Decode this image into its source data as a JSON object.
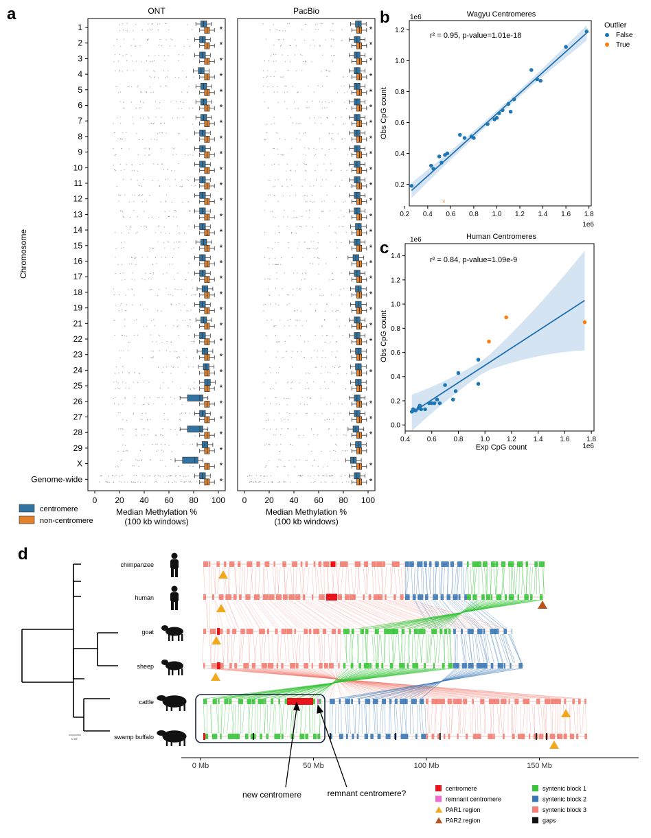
{
  "panel_a": {
    "label": "a",
    "y_axis_label": "Chromosome",
    "chromosomes": [
      "1",
      "2",
      "3",
      "4",
      "5",
      "6",
      "7",
      "8",
      "9",
      "10",
      "11",
      "12",
      "13",
      "14",
      "15",
      "16",
      "17",
      "18",
      "19",
      "21",
      "22",
      "23",
      "24",
      "25",
      "26",
      "27",
      "28",
      "29",
      "X",
      "Genome-wide"
    ],
    "star": "*",
    "ont": {
      "title": "ONT",
      "xlabel_line1": "Median Methylation %",
      "xlabel_line2": "(100 kb windows)",
      "ticks": [
        "0",
        "20",
        "40",
        "60",
        "80",
        "100"
      ],
      "stars": [
        1,
        1,
        1,
        1,
        1,
        1,
        1,
        1,
        1,
        1,
        1,
        1,
        1,
        1,
        1,
        1,
        1,
        1,
        1,
        1,
        1,
        1,
        1,
        1,
        1,
        1,
        1,
        1,
        1,
        1
      ]
    },
    "pacbio": {
      "title": "PacBio",
      "xlabel_line1": "Median Methylation %",
      "xlabel_line2": "(100 kb windows)",
      "ticks": [
        "0",
        "20",
        "40",
        "60",
        "80",
        "100"
      ],
      "stars": [
        1,
        1,
        1,
        1,
        1,
        1,
        1,
        1,
        1,
        1,
        1,
        1,
        1,
        1,
        1,
        1,
        1,
        1,
        1,
        1,
        1,
        0,
        1,
        0,
        1,
        1,
        1,
        0,
        1,
        1
      ]
    },
    "legend": [
      {
        "label": "centromere",
        "color": "#3274a1"
      },
      {
        "label": "non-centromere",
        "color": "#e1812c"
      }
    ]
  },
  "panel_b": {
    "label": "b",
    "title": "Wagyu Centromeres",
    "ylabel": "Obs CpG count",
    "annotation": "r² = 0.95, p-value=1.01e-18",
    "x_ticks": [
      "0.2",
      "0.4",
      "0.6",
      "0.8",
      "1.0",
      "1.2",
      "1.4",
      "1.6",
      "1.8"
    ],
    "y_ticks": [
      "0.2",
      "0.4",
      "0.6",
      "0.8",
      "1.0",
      "1.2"
    ],
    "x_scale": "1e6",
    "y_scale": "1e6",
    "legend_title": "Outlier",
    "legend": [
      {
        "label": "False",
        "color": "#1f77b4"
      },
      {
        "label": "True",
        "color": "#ff7f0e"
      }
    ]
  },
  "panel_c": {
    "label": "c",
    "title": "Human Centromeres",
    "ylabel": "Obs CpG count",
    "xlabel": "Exp CpG count",
    "annotation": "r² = 0.84, p-value=1.09e-9",
    "x_ticks": [
      "0.4",
      "0.6",
      "0.8",
      "1.0",
      "1.2",
      "1.4",
      "1.6",
      "1.8"
    ],
    "y_ticks": [
      "0.0",
      "0.2",
      "0.4",
      "0.6",
      "0.8",
      "1.0",
      "1.2",
      "1.4"
    ],
    "x_scale": "1e6",
    "y_scale": "1e6"
  },
  "panel_d": {
    "label": "d",
    "species": [
      "chimpanzee",
      "human",
      "goat",
      "sheep",
      "cattle",
      "swamp buffalo"
    ],
    "scale_label": "0.02",
    "axis_ticks": [
      "0 Mb",
      "50 Mb",
      "100 Mb",
      "150 Mb"
    ],
    "annotations": {
      "new": "new centromere",
      "remnant": "remnant centromere?"
    },
    "legend": [
      {
        "label": "centromere",
        "color": "#e8141c",
        "shape": "square"
      },
      {
        "label": "remnant centromere",
        "color": "#f06ad0",
        "shape": "square"
      },
      {
        "label": "PAR1 region",
        "color": "#f2a81d",
        "shape": "triangle"
      },
      {
        "label": "PAR2 region",
        "color": "#b5541e",
        "shape": "triangle"
      },
      {
        "label": "syntenic block 1",
        "color": "#38c43a",
        "shape": "square"
      },
      {
        "label": "syntenic block 2",
        "color": "#3a78b5",
        "shape": "square"
      },
      {
        "label": "syntenic block 3",
        "color": "#f27d72",
        "shape": "square"
      },
      {
        "label": "gaps",
        "color": "#111111",
        "shape": "square"
      }
    ]
  },
  "chart_data": [
    {
      "type": "box",
      "panel": "a-ONT",
      "x_range": [
        0,
        100
      ],
      "series": [
        {
          "name": "centromere",
          "medians": [
            88,
            87,
            87,
            86,
            88,
            88,
            88,
            87,
            87,
            87,
            87,
            87,
            87,
            87,
            88,
            87,
            87,
            89,
            87,
            88,
            87,
            89,
            90,
            91,
            85,
            87,
            85,
            89,
            81,
            87
          ]
        },
        {
          "name": "non-centromere",
          "medians": [
            91,
            91,
            91,
            91,
            91,
            91,
            91,
            91,
            91,
            91,
            91,
            91,
            91,
            91,
            91,
            91,
            91,
            91,
            91,
            91,
            91,
            91,
            91,
            91,
            91,
            91,
            91,
            91,
            91,
            91
          ]
        }
      ]
    },
    {
      "type": "box",
      "panel": "a-PacBio",
      "x_range": [
        0,
        100
      ],
      "series": [
        {
          "name": "centromere",
          "medians": [
            92,
            91,
            91,
            91,
            91,
            91,
            91,
            91,
            91,
            91,
            91,
            91,
            91,
            92,
            91,
            90,
            91,
            92,
            92,
            91,
            91,
            92,
            92,
            92,
            91,
            91,
            90,
            92,
            88,
            91
          ]
        },
        {
          "name": "non-centromere",
          "medians": [
            93,
            93,
            93,
            93,
            93,
            93,
            93,
            93,
            93,
            93,
            93,
            93,
            93,
            93,
            93,
            93,
            93,
            93,
            93,
            93,
            93,
            93,
            93,
            93,
            93,
            93,
            93,
            93,
            93,
            93
          ]
        }
      ]
    },
    {
      "type": "scatter",
      "panel": "b",
      "title": "Wagyu Centromeres",
      "ylabel": "Obs CpG count",
      "x_unit": "1e6",
      "y_unit": "1e6",
      "xlim": [
        0.24,
        1.82
      ],
      "ylim": [
        0.06,
        1.26
      ],
      "fit": {
        "x0": 0.26,
        "y0": 0.16,
        "x1": 1.78,
        "y1": 1.18
      },
      "points": [
        {
          "x": 0.26,
          "y": 0.19,
          "outlier": false
        },
        {
          "x": 0.43,
          "y": 0.32,
          "outlier": false
        },
        {
          "x": 0.45,
          "y": 0.3,
          "outlier": false
        },
        {
          "x": 0.5,
          "y": 0.38,
          "outlier": false
        },
        {
          "x": 0.52,
          "y": 0.34,
          "outlier": false
        },
        {
          "x": 0.55,
          "y": 0.39,
          "outlier": false
        },
        {
          "x": 0.57,
          "y": 0.4,
          "outlier": false
        },
        {
          "x": 0.68,
          "y": 0.52,
          "outlier": false
        },
        {
          "x": 0.72,
          "y": 0.5,
          "outlier": false
        },
        {
          "x": 0.78,
          "y": 0.51,
          "outlier": false
        },
        {
          "x": 0.8,
          "y": 0.5,
          "outlier": false
        },
        {
          "x": 0.92,
          "y": 0.59,
          "outlier": false
        },
        {
          "x": 0.98,
          "y": 0.62,
          "outlier": false
        },
        {
          "x": 1.0,
          "y": 0.63,
          "outlier": false
        },
        {
          "x": 1.02,
          "y": 0.66,
          "outlier": false
        },
        {
          "x": 1.05,
          "y": 0.68,
          "outlier": false
        },
        {
          "x": 1.1,
          "y": 0.72,
          "outlier": false
        },
        {
          "x": 1.12,
          "y": 0.67,
          "outlier": false
        },
        {
          "x": 1.15,
          "y": 0.75,
          "outlier": false
        },
        {
          "x": 1.3,
          "y": 0.94,
          "outlier": false
        },
        {
          "x": 1.35,
          "y": 0.88,
          "outlier": false
        },
        {
          "x": 1.38,
          "y": 0.87,
          "outlier": false
        },
        {
          "x": 1.6,
          "y": 1.09,
          "outlier": false
        },
        {
          "x": 1.78,
          "y": 1.19,
          "outlier": false
        },
        {
          "x": 0.54,
          "y": 0.09,
          "outlier": true
        }
      ]
    },
    {
      "type": "scatter",
      "panel": "c",
      "title": "Human Centromeres",
      "xlabel": "Exp CpG count",
      "ylabel": "Obs CpG count",
      "x_unit": "1e6",
      "y_unit": "1e6",
      "xlim": [
        0.4,
        1.82
      ],
      "ylim": [
        -0.05,
        1.5
      ],
      "fit": {
        "x0": 0.45,
        "y0": 0.1,
        "x1": 1.75,
        "y1": 1.03
      },
      "points": [
        {
          "x": 0.45,
          "y": 0.11,
          "outlier": false
        },
        {
          "x": 0.46,
          "y": 0.13,
          "outlier": false
        },
        {
          "x": 0.48,
          "y": 0.12,
          "outlier": false
        },
        {
          "x": 0.5,
          "y": 0.14,
          "outlier": false
        },
        {
          "x": 0.51,
          "y": 0.16,
          "outlier": false
        },
        {
          "x": 0.52,
          "y": 0.13,
          "outlier": false
        },
        {
          "x": 0.55,
          "y": 0.13,
          "outlier": false
        },
        {
          "x": 0.58,
          "y": 0.18,
          "outlier": false
        },
        {
          "x": 0.6,
          "y": 0.18,
          "outlier": false
        },
        {
          "x": 0.62,
          "y": 0.18,
          "outlier": false
        },
        {
          "x": 0.64,
          "y": 0.21,
          "outlier": false
        },
        {
          "x": 0.66,
          "y": 0.18,
          "outlier": false
        },
        {
          "x": 0.7,
          "y": 0.33,
          "outlier": false
        },
        {
          "x": 0.76,
          "y": 0.21,
          "outlier": false
        },
        {
          "x": 0.78,
          "y": 0.28,
          "outlier": false
        },
        {
          "x": 0.8,
          "y": 0.43,
          "outlier": false
        },
        {
          "x": 0.95,
          "y": 0.34,
          "outlier": false
        },
        {
          "x": 0.95,
          "y": 0.54,
          "outlier": false
        },
        {
          "x": 1.03,
          "y": 0.69,
          "outlier": true
        },
        {
          "x": 1.16,
          "y": 0.89,
          "outlier": true
        },
        {
          "x": 1.75,
          "y": 0.85,
          "outlier": true
        }
      ]
    }
  ]
}
